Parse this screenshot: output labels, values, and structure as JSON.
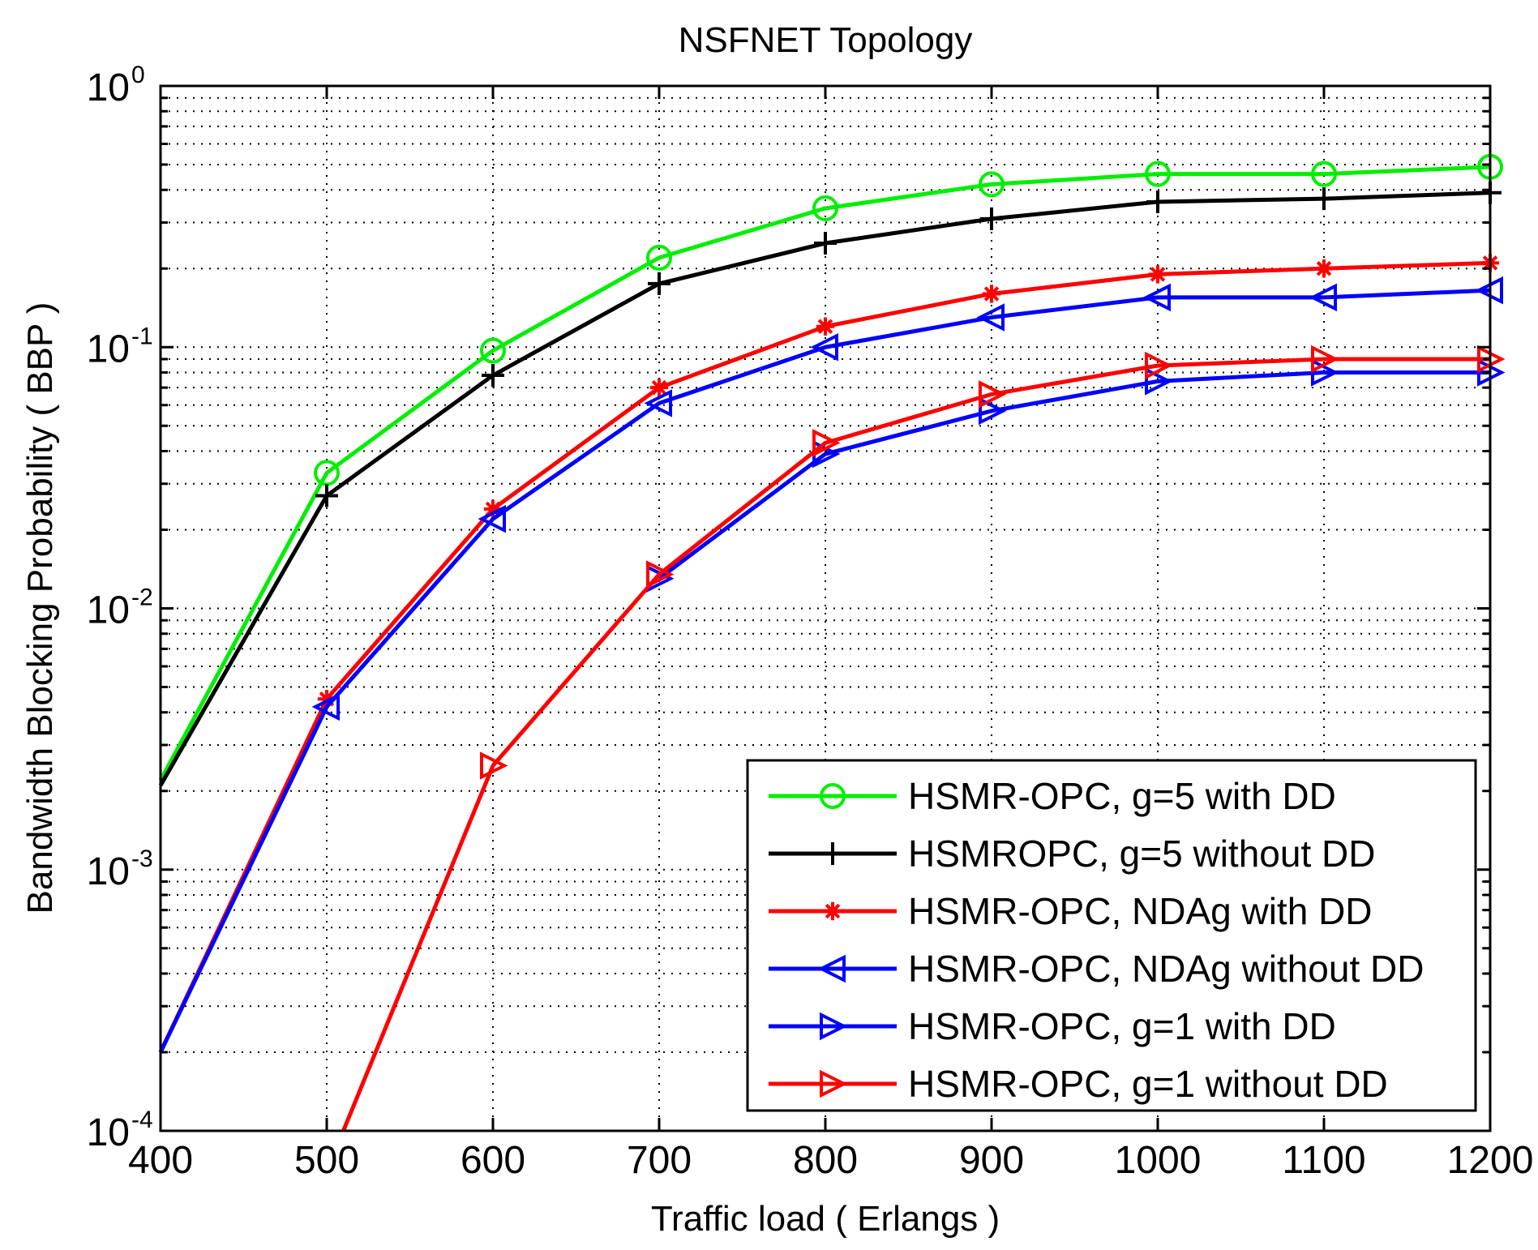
{
  "chart_data": {
    "type": "line",
    "title": "NSFNET Topology",
    "xlabel": "Traffic load ( Erlangs )",
    "ylabel": "Bandwidth Blocking Probability ( BBP )",
    "xlim": [
      400,
      1200
    ],
    "ylim": [
      0.0001,
      1
    ],
    "yscale": "log",
    "grid": true,
    "x_ticks": [
      400,
      500,
      600,
      700,
      800,
      900,
      1000,
      1100,
      1200
    ],
    "x_tick_labels": [
      "400",
      "500",
      "600",
      "700",
      "800",
      "900",
      "1000",
      "1100",
      "1200"
    ],
    "y_ticks": [
      {
        "value": 0.0001,
        "base": "10",
        "exp": "-4"
      },
      {
        "value": 0.001,
        "base": "10",
        "exp": "-3"
      },
      {
        "value": 0.01,
        "base": "10",
        "exp": "-2"
      },
      {
        "value": 0.1,
        "base": "10",
        "exp": "-1"
      },
      {
        "value": 1,
        "base": "10",
        "exp": "0"
      }
    ],
    "legend_position": "bottom-right",
    "series": [
      {
        "name": "HSMR-OPC, g=5 with DD",
        "color": "#00ee00",
        "marker": "circle",
        "x": [
          400,
          500,
          600,
          700,
          800,
          900,
          1000,
          1100,
          1200
        ],
        "values": [
          0.0022,
          0.033,
          0.097,
          0.22,
          0.34,
          0.42,
          0.46,
          0.46,
          0.49
        ]
      },
      {
        "name": "HSMROPC, g=5 without DD",
        "color": "#000000",
        "marker": "plus",
        "x": [
          400,
          500,
          600,
          700,
          800,
          900,
          1000,
          1100,
          1200
        ],
        "values": [
          0.0021,
          0.027,
          0.078,
          0.175,
          0.25,
          0.31,
          0.36,
          0.37,
          0.39
        ]
      },
      {
        "name": "HSMR-OPC, NDAg with DD",
        "color": "#ff0000",
        "marker": "star",
        "x": [
          400,
          500,
          600,
          700,
          800,
          900,
          1000,
          1100,
          1200
        ],
        "values": [
          0.0002,
          0.0045,
          0.024,
          0.07,
          0.12,
          0.16,
          0.19,
          0.2,
          0.21
        ]
      },
      {
        "name": "HSMR-OPC, NDAg without DD",
        "color": "#0000ff",
        "marker": "triangle-left",
        "x": [
          400,
          500,
          600,
          700,
          800,
          900,
          1000,
          1100,
          1200
        ],
        "values": [
          0.0002,
          0.0042,
          0.022,
          0.061,
          0.1,
          0.13,
          0.155,
          0.155,
          0.165
        ]
      },
      {
        "name": "HSMR-OPC, g=1 with DD",
        "color": "#0000ff",
        "marker": "triangle-right",
        "x": [
          700,
          800,
          900,
          1000,
          1100,
          1200
        ],
        "values": [
          0.013,
          0.039,
          0.057,
          0.074,
          0.08,
          0.08
        ]
      },
      {
        "name": "HSMR-OPC, g=1 without DD",
        "color": "#ff0000",
        "marker": "triangle-right",
        "x": [
          510,
          600,
          700,
          800,
          900,
          1000,
          1100,
          1200
        ],
        "values": [
          0.0001,
          0.0025,
          0.0135,
          0.043,
          0.066,
          0.085,
          0.09,
          0.09
        ]
      }
    ]
  }
}
